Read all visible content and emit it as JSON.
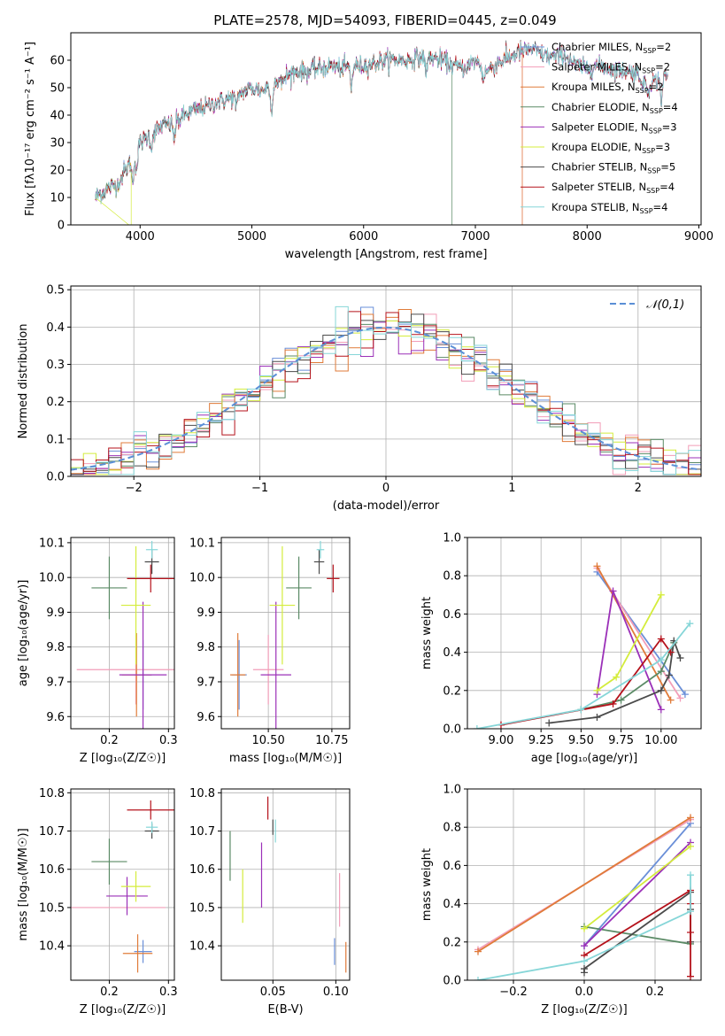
{
  "colors": [
    "#6a8fd8",
    "#f29db8",
    "#e07b39",
    "#5a8a65",
    "#9b30b8",
    "#d4ec3c",
    "#4b4b4b",
    "#b5121b",
    "#86d6d8"
  ],
  "series_names": [
    "Chabrier MILES",
    "Salpeter MILES",
    "Kroupa MILES",
    "Chabrier ELODIE",
    "Salpeter ELODIE",
    "Kroupa ELODIE",
    "Chabrier STELIB",
    "Salpeter STELIB",
    "Kroupa STELIB"
  ],
  "chart_data": [
    {
      "type": "line",
      "title": "PLATE=2578, MJD=54093, FIBERID=0445, z=0.049",
      "xlabel": "wavelength [Angstrom, rest frame]",
      "ylabel": "Flux [fλ10⁻¹⁷ erg cm⁻² s⁻¹ A⁻¹]",
      "xlim": [
        3380,
        9020
      ],
      "ylim": [
        0,
        70
      ],
      "xticks": [
        4000,
        5000,
        6000,
        7000,
        8000,
        9000
      ],
      "yticks": [
        0,
        10,
        20,
        30,
        40,
        50,
        60
      ],
      "legend": "upper-right",
      "legend_entries": [
        {
          "name": "Chabrier MILES",
          "nssp": "2"
        },
        {
          "name": "Salpeter MILES",
          "nssp": "2"
        },
        {
          "name": "Kroupa MILES",
          "nssp": "2"
        },
        {
          "name": "Chabrier ELODIE",
          "nssp": "4"
        },
        {
          "name": "Salpeter ELODIE",
          "nssp": "3"
        },
        {
          "name": "Kroupa ELODIE",
          "nssp": "3"
        },
        {
          "name": "Chabrier STELIB",
          "nssp": "5"
        },
        {
          "name": "Salpeter STELIB",
          "nssp": "4"
        },
        {
          "name": "Kroupa STELIB",
          "nssp": "4"
        }
      ],
      "continuum": [
        [
          3600,
          10
        ],
        [
          3700,
          13
        ],
        [
          3800,
          15
        ],
        [
          3900,
          22
        ],
        [
          4000,
          30
        ],
        [
          4100,
          33
        ],
        [
          4200,
          36
        ],
        [
          4300,
          37
        ],
        [
          4400,
          40
        ],
        [
          4500,
          42
        ],
        [
          4600,
          43
        ],
        [
          4700,
          45
        ],
        [
          4800,
          46
        ],
        [
          4900,
          48
        ],
        [
          5000,
          50
        ],
        [
          5100,
          49
        ],
        [
          5200,
          52
        ],
        [
          5300,
          54
        ],
        [
          5400,
          56
        ],
        [
          5500,
          56
        ],
        [
          5600,
          57
        ],
        [
          5700,
          58
        ],
        [
          5800,
          57
        ],
        [
          5900,
          58
        ],
        [
          6000,
          58
        ],
        [
          6100,
          59
        ],
        [
          6200,
          60
        ],
        [
          6300,
          60
        ],
        [
          6400,
          60
        ],
        [
          6500,
          61
        ],
        [
          6600,
          61
        ],
        [
          6700,
          60
        ],
        [
          6800,
          58
        ],
        [
          6900,
          57
        ],
        [
          7000,
          60
        ],
        [
          7100,
          56
        ],
        [
          7200,
          59
        ],
        [
          7300,
          61
        ],
        [
          7400,
          63
        ],
        [
          7500,
          64
        ],
        [
          7600,
          62
        ],
        [
          7700,
          61
        ],
        [
          7800,
          62
        ],
        [
          7900,
          58
        ],
        [
          8000,
          57
        ],
        [
          8100,
          58
        ],
        [
          8200,
          57
        ],
        [
          8300,
          56
        ],
        [
          8400,
          56
        ],
        [
          8500,
          54
        ],
        [
          8600,
          52
        ],
        [
          8700,
          54
        ]
      ],
      "absorption_lines": [
        [
          3934,
          -10
        ],
        [
          3969,
          -8
        ],
        [
          4101,
          -5
        ],
        [
          4305,
          -6
        ],
        [
          4861,
          -5
        ],
        [
          5175,
          -11
        ],
        [
          5270,
          -3
        ],
        [
          5890,
          -8
        ],
        [
          6563,
          -6
        ],
        [
          7070,
          -4
        ],
        [
          8500,
          -5
        ],
        [
          8545,
          -6
        ],
        [
          8665,
          -8
        ]
      ],
      "truncated_models": [
        {
          "series": 5,
          "cutoff": 3920
        },
        {
          "series": 3,
          "cutoff": 6790
        },
        {
          "series": 2,
          "cutoff": 7420
        },
        {
          "series": 1,
          "cutoff": 7420
        }
      ]
    },
    {
      "type": "step",
      "xlabel": "(data-model)/error",
      "ylabel": "Normed distribution",
      "xlim": [
        -2.5,
        2.5
      ],
      "ylim": [
        0,
        0.51
      ],
      "xticks": [
        -2,
        -1,
        0,
        1,
        2
      ],
      "yticks": [
        0.0,
        0.1,
        0.2,
        0.3,
        0.4,
        0.5
      ],
      "bin_width": 0.1,
      "legend": "upper-right",
      "legend_label": "𝒩(0,1)",
      "reference_curve": "normal(0,1)"
    },
    {
      "type": "scatter",
      "xlabel": "Z [log₁₀(Z/Z☉)]",
      "ylabel": "age  [log₁₀(age/yr)]",
      "xlim": [
        0.135,
        0.31
      ],
      "ylim": [
        9.565,
        10.115
      ],
      "xticks": [
        0.2,
        0.3
      ],
      "yticks": [
        9.6,
        9.7,
        9.8,
        9.9,
        10.0,
        10.1
      ],
      "errorbars": [
        {
          "series": 0,
          "x": 0.257,
          "xerr": 0.015,
          "y": 9.72,
          "yerr": 0.1
        },
        {
          "series": 1,
          "x": 0.245,
          "xerr": 0.1,
          "y": 9.735,
          "yerr": 0.1
        },
        {
          "series": 2,
          "x": 0.246,
          "xerr": 0.025,
          "y": 9.72,
          "yerr": 0.12
        },
        {
          "series": 3,
          "x": 0.2,
          "xerr": 0.03,
          "y": 9.97,
          "yerr": 0.09
        },
        {
          "series": 4,
          "x": 0.257,
          "xerr": 0.04,
          "y": 9.72,
          "yerr": 0.21
        },
        {
          "series": 5,
          "x": 0.245,
          "xerr": 0.025,
          "y": 9.92,
          "yerr": 0.17
        },
        {
          "series": 6,
          "x": 0.272,
          "xerr": 0.012,
          "y": 10.045,
          "yerr": 0.035
        },
        {
          "series": 7,
          "x": 0.27,
          "xerr": 0.04,
          "y": 9.997,
          "yerr": 0.04
        },
        {
          "series": 8,
          "x": 0.272,
          "xerr": 0.01,
          "y": 10.08,
          "yerr": 0.025
        }
      ]
    },
    {
      "type": "scatter",
      "xlabel": "mass [log₁₀(M/M☉)]",
      "ylabel": "",
      "xlim": [
        10.315,
        10.82
      ],
      "ylim": [
        9.565,
        10.115
      ],
      "xticks": [
        10.5,
        10.75
      ],
      "tick_labels_x": [
        "10.50",
        "10.75"
      ],
      "yticks": [
        9.6,
        9.7,
        9.8,
        9.9,
        10.0,
        10.1
      ],
      "errorbars": [
        {
          "series": 0,
          "x": 10.385,
          "xerr": 0.03,
          "y": 9.72,
          "yerr": 0.1
        },
        {
          "series": 1,
          "x": 10.5,
          "xerr": 0.06,
          "y": 9.735,
          "yerr": 0.1
        },
        {
          "series": 2,
          "x": 10.38,
          "xerr": 0.03,
          "y": 9.72,
          "yerr": 0.12
        },
        {
          "series": 3,
          "x": 10.62,
          "xerr": 0.05,
          "y": 9.97,
          "yerr": 0.09
        },
        {
          "series": 4,
          "x": 10.53,
          "xerr": 0.06,
          "y": 9.72,
          "yerr": 0.21
        },
        {
          "series": 5,
          "x": 10.555,
          "xerr": 0.05,
          "y": 9.92,
          "yerr": 0.17
        },
        {
          "series": 6,
          "x": 10.7,
          "xerr": 0.02,
          "y": 10.045,
          "yerr": 0.035
        },
        {
          "series": 7,
          "x": 10.755,
          "xerr": 0.025,
          "y": 9.997,
          "yerr": 0.04
        },
        {
          "series": 8,
          "x": 10.705,
          "xerr": 0.015,
          "y": 10.08,
          "yerr": 0.025
        }
      ]
    },
    {
      "type": "line",
      "xlabel": "age  [log₁₀(age/yr)]",
      "ylabel": "mass weight",
      "xlim": [
        8.79,
        10.25
      ],
      "ylim": [
        0,
        1
      ],
      "xticks": [
        9.0,
        9.25,
        9.5,
        9.75,
        10.0
      ],
      "tick_labels_x": [
        "9.00",
        "9.25",
        "9.50",
        "9.75",
        "10.00"
      ],
      "yticks": [
        0.0,
        0.2,
        0.4,
        0.6,
        0.8,
        1.0
      ],
      "series": [
        {
          "series": 0,
          "points": [
            [
              9.6,
              0.82
            ],
            [
              10.15,
              0.18
            ]
          ]
        },
        {
          "series": 1,
          "points": [
            [
              9.6,
              0.84
            ],
            [
              10.12,
              0.16
            ]
          ]
        },
        {
          "series": 2,
          "points": [
            [
              9.6,
              0.85
            ],
            [
              10.06,
              0.15
            ]
          ]
        },
        {
          "series": 3,
          "points": [
            [
              9.5,
              0.1
            ],
            [
              9.75,
              0.15
            ],
            [
              10.0,
              0.3
            ],
            [
              10.08,
              0.45
            ]
          ]
        },
        {
          "series": 4,
          "points": [
            [
              9.6,
              0.18
            ],
            [
              9.7,
              0.72
            ],
            [
              10.0,
              0.1
            ]
          ]
        },
        {
          "series": 5,
          "points": [
            [
              9.6,
              0.2
            ],
            [
              9.72,
              0.27
            ],
            [
              10.0,
              0.7
            ]
          ]
        },
        {
          "series": 6,
          "points": [
            [
              9.3,
              0.03
            ],
            [
              9.6,
              0.06
            ],
            [
              10.0,
              0.2
            ],
            [
              10.05,
              0.28
            ],
            [
              10.08,
              0.46
            ],
            [
              10.12,
              0.37
            ]
          ]
        },
        {
          "series": 7,
          "points": [
            [
              9.0,
              0.02
            ],
            [
              9.7,
              0.13
            ],
            [
              10.0,
              0.47
            ],
            [
              10.06,
              0.4
            ]
          ]
        },
        {
          "series": 8,
          "points": [
            [
              8.85,
              0.0
            ],
            [
              9.5,
              0.1
            ],
            [
              10.0,
              0.36
            ],
            [
              10.18,
              0.55
            ]
          ]
        }
      ]
    },
    {
      "type": "scatter",
      "xlabel": "Z [log₁₀(Z/Z☉)]",
      "ylabel": "mass [log₁₀(M/M☉)]",
      "xlim": [
        0.135,
        0.31
      ],
      "ylim": [
        10.31,
        10.81
      ],
      "xticks": [
        0.2,
        0.3
      ],
      "yticks": [
        10.4,
        10.5,
        10.6,
        10.7,
        10.8
      ],
      "errorbars": [
        {
          "series": 0,
          "x": 0.257,
          "xerr": 0.015,
          "y": 10.385,
          "yerr": 0.03
        },
        {
          "series": 1,
          "x": 0.215,
          "xerr": 0.08,
          "y": 10.5,
          "yerr": 0.0
        },
        {
          "series": 2,
          "x": 0.248,
          "xerr": 0.025,
          "y": 10.38,
          "yerr": 0.05
        },
        {
          "series": 3,
          "x": 0.2,
          "xerr": 0.03,
          "y": 10.62,
          "yerr": 0.06
        },
        {
          "series": 4,
          "x": 0.23,
          "xerr": 0.035,
          "y": 10.53,
          "yerr": 0.05
        },
        {
          "series": 5,
          "x": 0.245,
          "xerr": 0.025,
          "y": 10.555,
          "yerr": 0.04
        },
        {
          "series": 6,
          "x": 0.272,
          "xerr": 0.012,
          "y": 10.7,
          "yerr": 0.02
        },
        {
          "series": 7,
          "x": 0.27,
          "xerr": 0.04,
          "y": 10.755,
          "yerr": 0.025
        },
        {
          "series": 8,
          "x": 0.272,
          "xerr": 0.01,
          "y": 10.71,
          "yerr": 0.015
        }
      ]
    },
    {
      "type": "scatter",
      "xlabel": "E(B-V)",
      "ylabel": "",
      "xlim": [
        0.009,
        0.111
      ],
      "ylim": [
        10.31,
        10.81
      ],
      "xticks": [
        0.05,
        0.1
      ],
      "tick_labels_x": [
        "0.05",
        "0.10"
      ],
      "yticks": [
        10.4,
        10.5,
        10.6,
        10.7,
        10.8
      ],
      "errorbars": [
        {
          "series": 0,
          "x": 0.099,
          "xerr": 0.0,
          "y": 10.385,
          "yerr": 0.035
        },
        {
          "series": 1,
          "x": 0.103,
          "xerr": 0.0,
          "y": 10.52,
          "yerr": 0.07
        },
        {
          "series": 2,
          "x": 0.108,
          "xerr": 0.0,
          "y": 10.37,
          "yerr": 0.04
        },
        {
          "series": 3,
          "x": 0.016,
          "xerr": 0.0,
          "y": 10.635,
          "yerr": 0.065
        },
        {
          "series": 4,
          "x": 0.041,
          "xerr": 0.0,
          "y": 10.585,
          "yerr": 0.085
        },
        {
          "series": 5,
          "x": 0.026,
          "xerr": 0.0,
          "y": 10.53,
          "yerr": 0.07
        },
        {
          "series": 6,
          "x": 0.05,
          "xerr": 0.0,
          "y": 10.71,
          "yerr": 0.02
        },
        {
          "series": 7,
          "x": 0.046,
          "xerr": 0.0,
          "y": 10.76,
          "yerr": 0.03
        },
        {
          "series": 8,
          "x": 0.052,
          "xerr": 0.0,
          "y": 10.7,
          "yerr": 0.03
        }
      ]
    },
    {
      "type": "line",
      "xlabel": "Z [log₁₀(Z/Z☉)]",
      "ylabel": "mass weight",
      "xlim": [
        -0.33,
        0.33
      ],
      "ylim": [
        0,
        1
      ],
      "xticks": [
        -0.2,
        0.0,
        0.2
      ],
      "tick_labels_x": [
        "−0.2",
        "0.0",
        "0.2"
      ],
      "yticks": [
        0.0,
        0.2,
        0.4,
        0.6,
        0.8,
        1.0
      ],
      "series": [
        {
          "series": 0,
          "points": [
            [
              0.0,
              0.18
            ],
            [
              0.3,
              0.82
            ]
          ]
        },
        {
          "series": 1,
          "points": [
            [
              -0.3,
              0.16
            ],
            [
              0.3,
              0.84
            ]
          ]
        },
        {
          "series": 2,
          "points": [
            [
              -0.3,
              0.15
            ],
            [
              0.3,
              0.85
            ]
          ]
        },
        {
          "series": 3,
          "points": [
            [
              0.0,
              0.28
            ],
            [
              0.3,
              0.19
            ]
          ]
        },
        {
          "series": 4,
          "points": [
            [
              0.0,
              0.18
            ],
            [
              0.3,
              0.72
            ]
          ]
        },
        {
          "series": 5,
          "points": [
            [
              0.0,
              0.27
            ],
            [
              0.3,
              0.7
            ]
          ]
        },
        {
          "series": 6,
          "points": [
            [
              0.0,
              0.04
            ],
            [
              0.0,
              0.06
            ],
            [
              0.3,
              0.46
            ],
            [
              0.3,
              0.37
            ],
            [
              0.3,
              0.2
            ]
          ]
        },
        {
          "series": 7,
          "points": [
            [
              0.0,
              0.13
            ],
            [
              0.3,
              0.47
            ],
            [
              0.3,
              0.25
            ],
            [
              0.3,
              0.02
            ],
            [
              0.3,
              0.4
            ]
          ]
        },
        {
          "series": 8,
          "points": [
            [
              -0.3,
              0.0
            ],
            [
              0.0,
              0.1
            ],
            [
              0.3,
              0.36
            ],
            [
              0.3,
              0.55
            ]
          ]
        }
      ]
    }
  ]
}
